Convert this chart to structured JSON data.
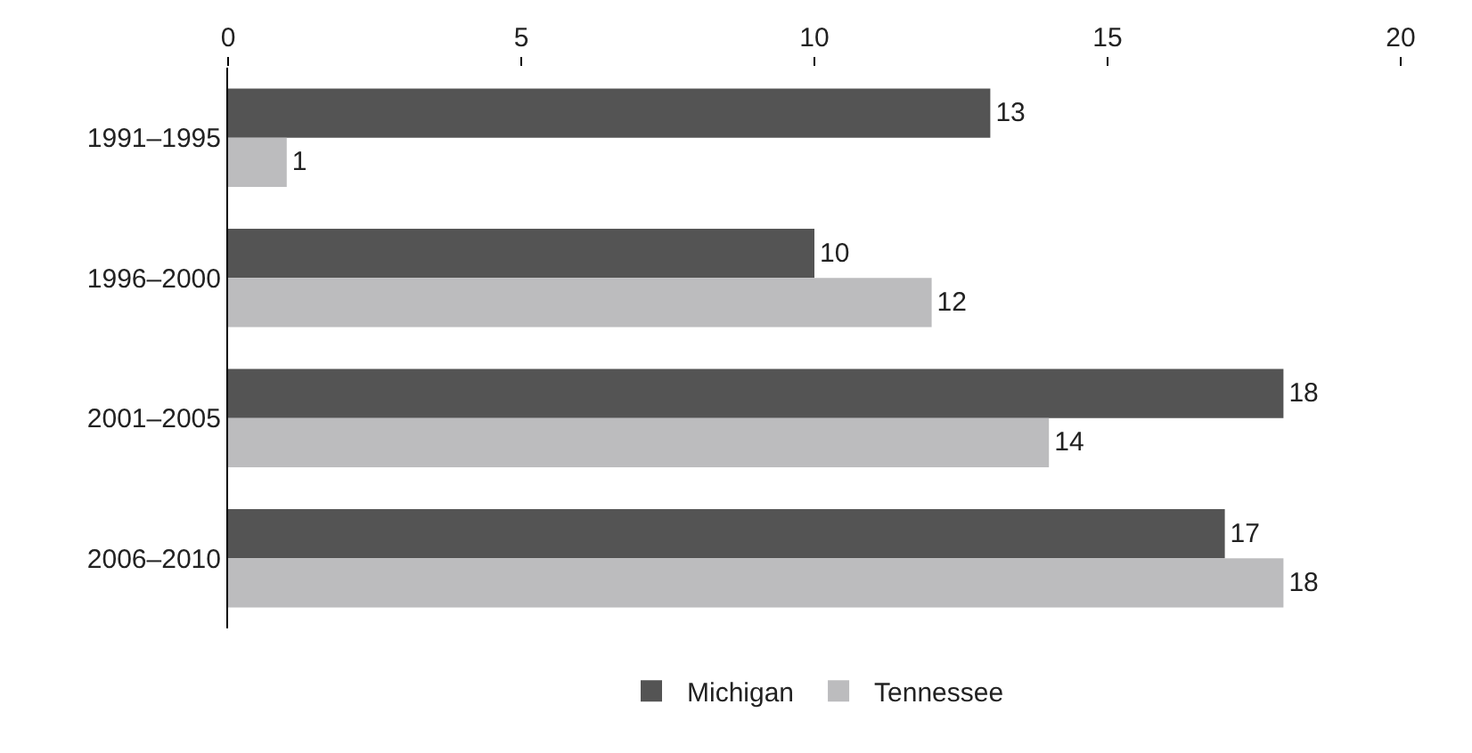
{
  "chart_data": {
    "type": "bar",
    "orientation": "horizontal",
    "categories": [
      "1991–1995",
      "1996–2000",
      "2001–2005",
      "2006–2010"
    ],
    "series": [
      {
        "name": "Michigan",
        "color": "#545454",
        "values": [
          13,
          10,
          18,
          17
        ]
      },
      {
        "name": "Tennessee",
        "color": "#bcbcbe",
        "values": [
          1,
          12,
          14,
          18
        ]
      }
    ],
    "xlim": [
      0,
      20
    ],
    "xticks": [
      0,
      5,
      10,
      15,
      20
    ],
    "data_labels": true,
    "grid": false,
    "legend": "bottom"
  }
}
